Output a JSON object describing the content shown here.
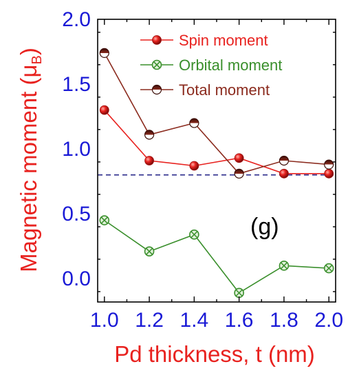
{
  "chart_data": {
    "type": "line",
    "x": [
      1.0,
      1.2,
      1.4,
      1.6,
      1.8,
      2.0
    ],
    "x_tick_labels": [
      "1.0",
      "1.2",
      "1.4",
      "1.6",
      "1.8",
      "2.0"
    ],
    "y_tick_labels": [
      "0.0",
      "0.5",
      "1.0",
      "1.5",
      "2.0"
    ],
    "y_ticks": [
      0.0,
      0.5,
      1.0,
      1.5,
      2.0
    ],
    "xlim": [
      0.97,
      2.03
    ],
    "ylim": [
      -0.18,
      2.0
    ],
    "xlabel": "Pd thickness, t (nm)",
    "ylabel_main": "Magnetic moment (μ",
    "ylabel_sub": "B",
    "ylabel_end": ")",
    "panel_label": "(g)",
    "reference_line_y": 0.8,
    "series": [
      {
        "name": "Spin moment",
        "values": [
          1.3,
          0.91,
          0.87,
          0.93,
          0.81,
          0.81
        ],
        "color": "#e8221f",
        "marker": "sphere"
      },
      {
        "name": "Orbital moment",
        "values": [
          0.45,
          0.21,
          0.34,
          -0.11,
          0.1,
          0.08
        ],
        "color": "#3a8f2c",
        "marker": "crossed-box"
      },
      {
        "name": "Total moment",
        "values": [
          1.74,
          1.11,
          1.2,
          0.81,
          0.91,
          0.88
        ],
        "color": "#8b2b1e",
        "marker": "half-filled-circle"
      }
    ],
    "legend_position": "top-right",
    "grid": false,
    "axis_tick_color": "#1a1ad6",
    "axis_title_color": "#e8221f",
    "reference_line_color": "#2a2a8a"
  }
}
